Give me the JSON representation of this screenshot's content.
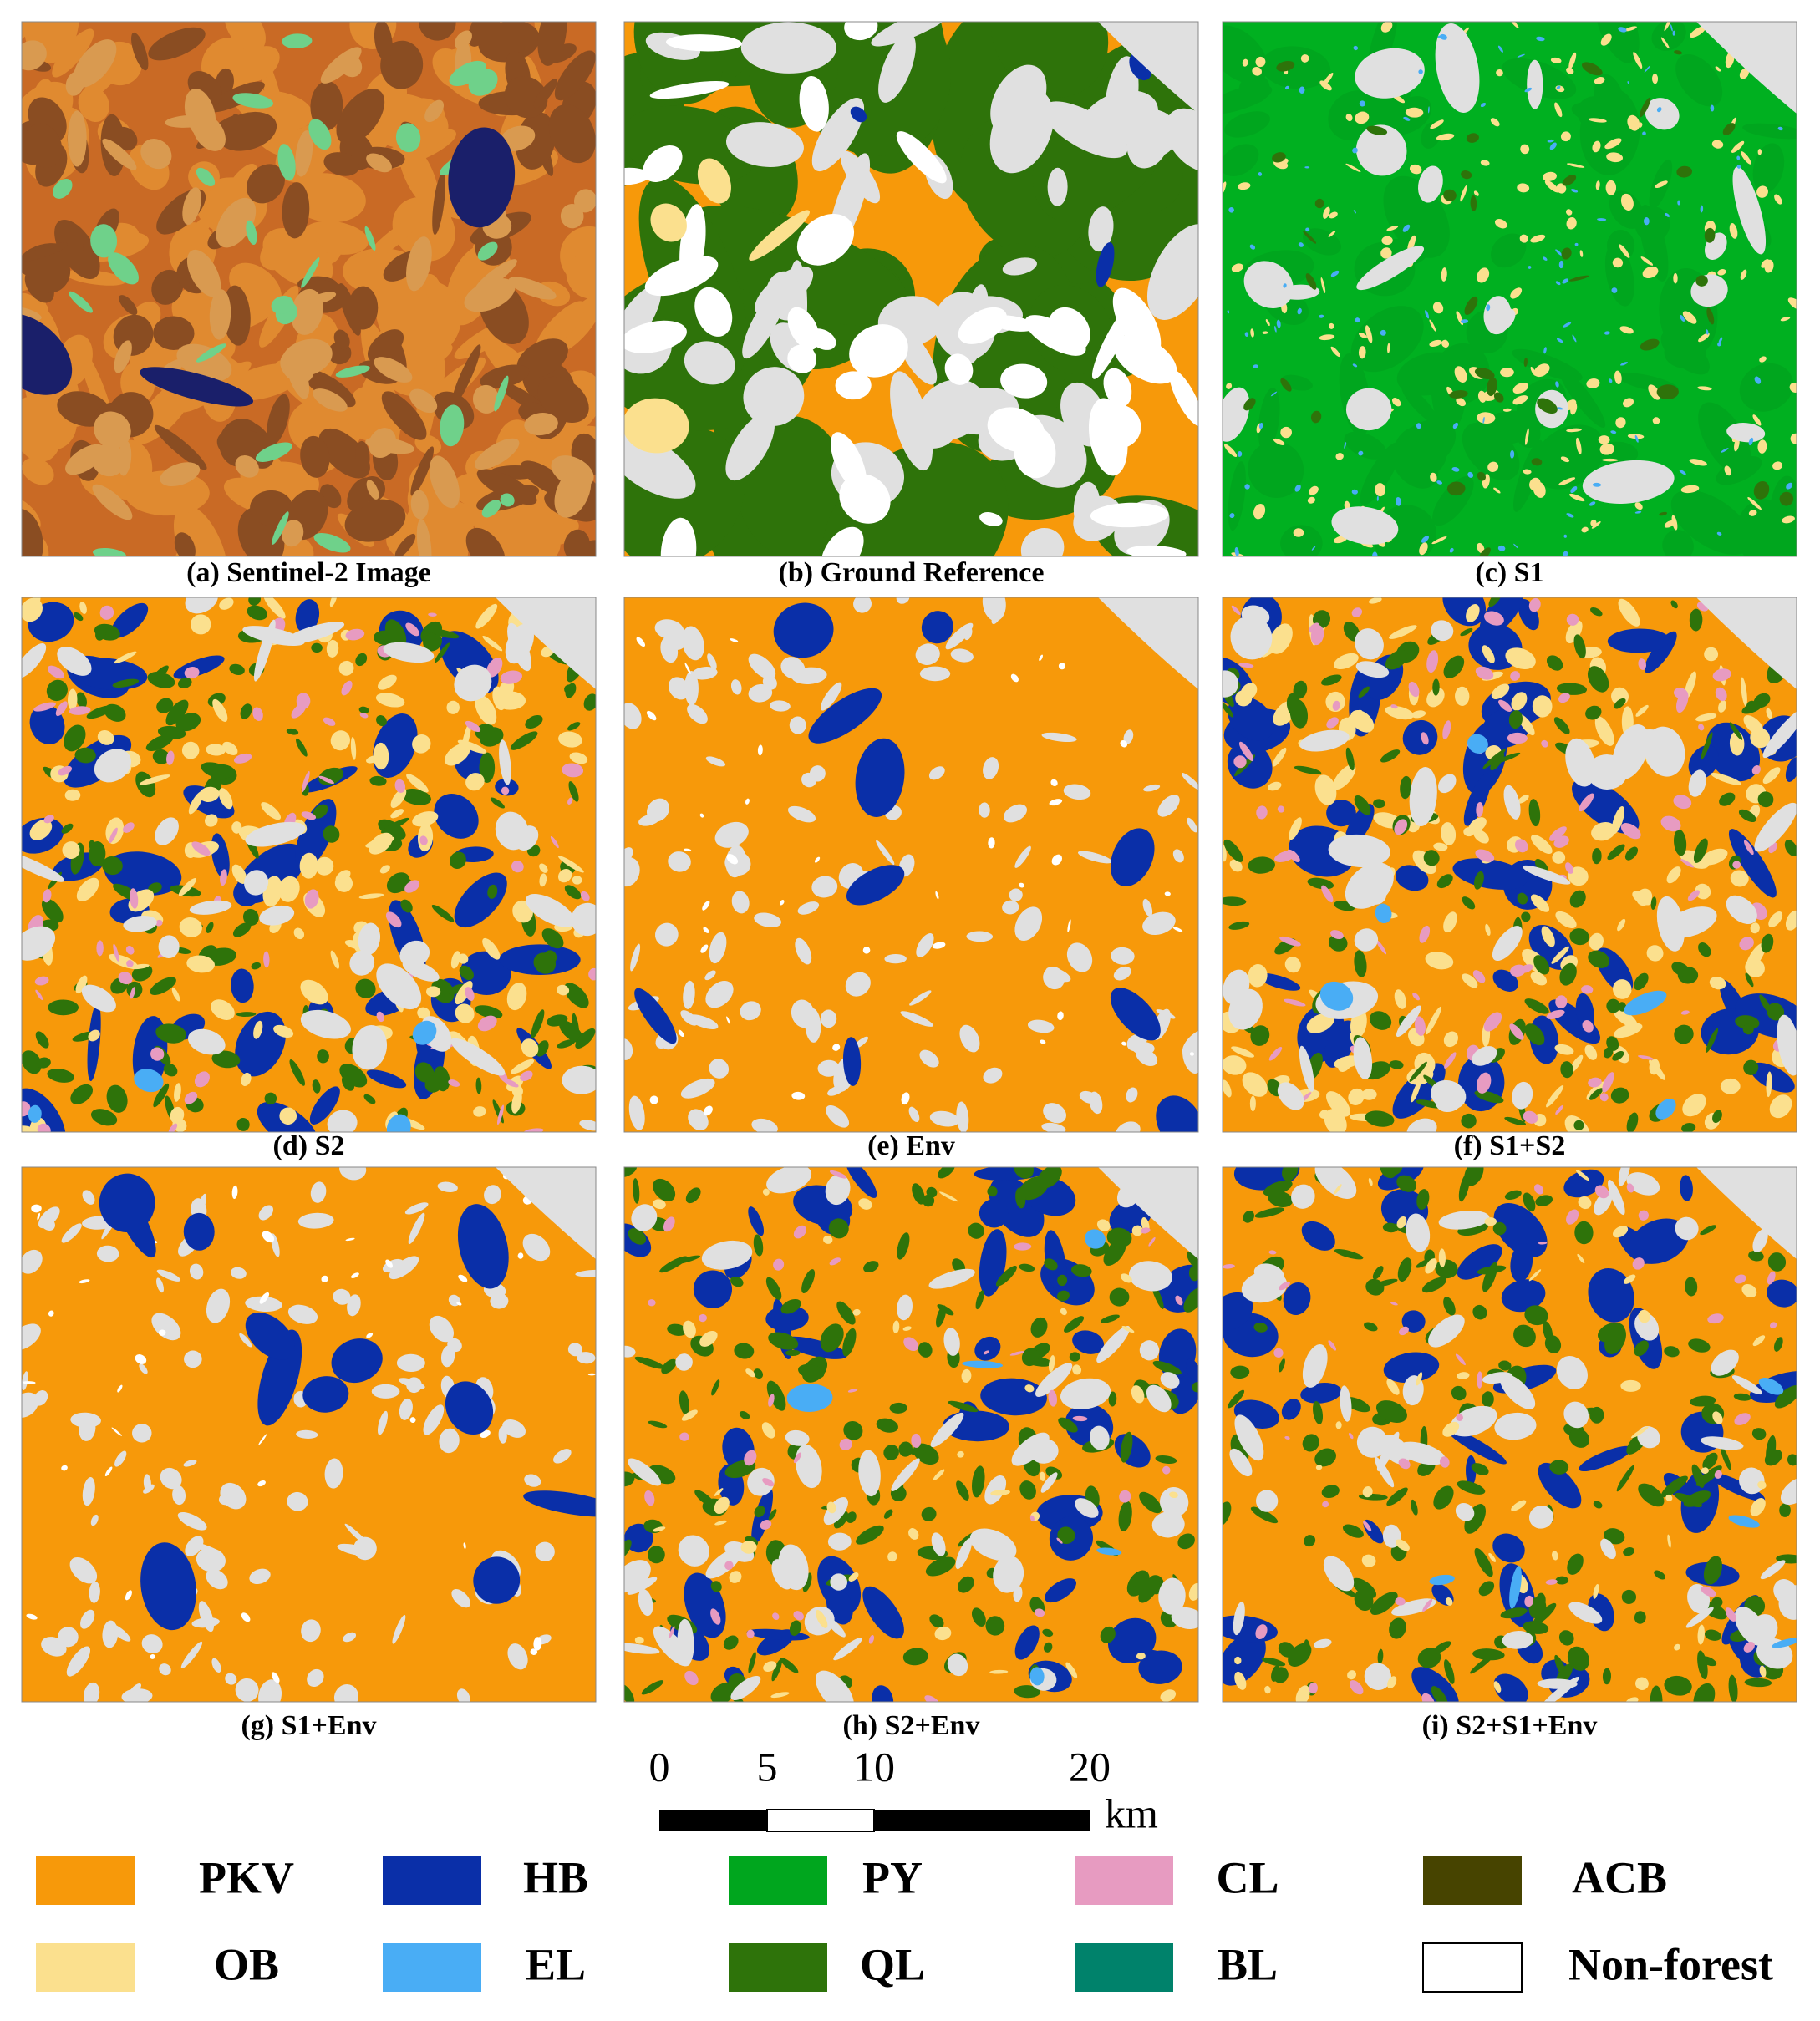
{
  "panels": [
    {
      "caption": "(a) Sentinel-2 Image"
    },
    {
      "caption": "(b) Ground Reference"
    },
    {
      "caption": "(c) S1"
    },
    {
      "caption": "(d) S2"
    },
    {
      "caption": "(e) Env"
    },
    {
      "caption": "(f) S1+S2"
    },
    {
      "caption": "(g) S1+Env"
    },
    {
      "caption": "(h) S2+Env"
    },
    {
      "caption": "(i) S2+S1+Env"
    }
  ],
  "scale_bar": {
    "ticks": [
      "0",
      "5",
      "10",
      "20"
    ],
    "unit": "km"
  },
  "legend": [
    {
      "label": "PKV",
      "color": "#f7990a"
    },
    {
      "label": "HB",
      "color": "#0a2fa8"
    },
    {
      "label": "PY",
      "color": "#00a61e"
    },
    {
      "label": "CL",
      "color": "#e79bc1"
    },
    {
      "label": "ACB",
      "color": "#474400"
    },
    {
      "label": "OB",
      "color": "#fbe08e"
    },
    {
      "label": "EL",
      "color": "#49adf5"
    },
    {
      "label": "QL",
      "color": "#2e730a"
    },
    {
      "label": "BL",
      "color": "#00826b"
    },
    {
      "label": "Non-forest",
      "color": "#ffffff"
    }
  ]
}
